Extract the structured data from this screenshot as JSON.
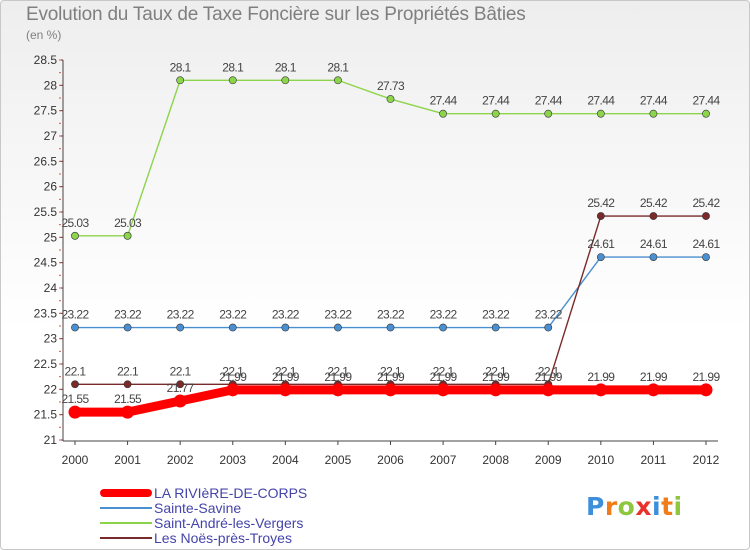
{
  "chart_data": {
    "type": "line",
    "title": "Evolution du Taux de Taxe Foncière sur les Propriétés Bâties",
    "subtitle": "(en %)",
    "x": [
      "2000",
      "2001",
      "2002",
      "2003",
      "2004",
      "2005",
      "2006",
      "2007",
      "2008",
      "2009",
      "2010",
      "2011",
      "2012"
    ],
    "ylim": [
      21,
      28.5
    ],
    "yticks": [
      "21",
      "21.5",
      "22",
      "22.5",
      "23",
      "23.5",
      "24",
      "24.5",
      "25",
      "25.5",
      "26",
      "26.5",
      "27",
      "27.5",
      "28",
      "28.5"
    ],
    "grid": false,
    "series": [
      {
        "name": "LA RIVIèRE-DE-CORPS",
        "color": "#ff0000",
        "values": [
          21.55,
          21.55,
          21.77,
          21.99,
          21.99,
          21.99,
          21.99,
          21.99,
          21.99,
          21.99,
          21.99,
          21.99,
          21.99
        ],
        "labels": [
          "21.55",
          "21.55",
          "21.77",
          "21.99",
          "21.99",
          "21.99",
          "21.99",
          "21.99",
          "21.99",
          "21.99",
          "21.99",
          "21.99",
          "21.99"
        ]
      },
      {
        "name": "Sainte-Savine",
        "color": "#4a8fd0",
        "values": [
          23.22,
          23.22,
          23.22,
          23.22,
          23.22,
          23.22,
          23.22,
          23.22,
          23.22,
          23.22,
          24.61,
          24.61,
          24.61
        ],
        "labels": [
          "23.22",
          "23.22",
          "23.22",
          "23.22",
          "23.22",
          "23.22",
          "23.22",
          "23.22",
          "23.22",
          "23.22",
          "24.61",
          "24.61",
          "24.61"
        ]
      },
      {
        "name": "Saint-André-les-Vergers",
        "color": "#8cd44c",
        "values": [
          25.03,
          25.03,
          28.1,
          28.1,
          28.1,
          28.1,
          27.73,
          27.44,
          27.44,
          27.44,
          27.44,
          27.44,
          27.44
        ],
        "labels": [
          "25.03",
          "25.03",
          "28.1",
          "28.1",
          "28.1",
          "28.1",
          "27.73",
          "27.44",
          "27.44",
          "27.44",
          "27.44",
          "27.44",
          "27.44"
        ]
      },
      {
        "name": "Les Noës-près-Troyes",
        "color": "#7a2a2a",
        "values": [
          22.1,
          22.1,
          22.1,
          22.1,
          22.1,
          22.1,
          22.1,
          22.1,
          22.1,
          22.1,
          25.42,
          25.42,
          25.42
        ],
        "labels": [
          "22.1",
          "22.1",
          "22.1",
          "22.1",
          "22.1",
          "22.1",
          "22.1",
          "22.1",
          "22.1",
          "22.1",
          "25.42",
          "25.42",
          "25.42"
        ]
      }
    ]
  },
  "logo": {
    "letters": [
      "P",
      "r",
      "o",
      "x",
      "i",
      "t",
      "i"
    ],
    "colors": [
      "#3d8fdc",
      "#f07d1a",
      "#8ec63f",
      "#e8332d",
      "#3d8fdc",
      "#f07d1a",
      "#8ec63f"
    ]
  }
}
